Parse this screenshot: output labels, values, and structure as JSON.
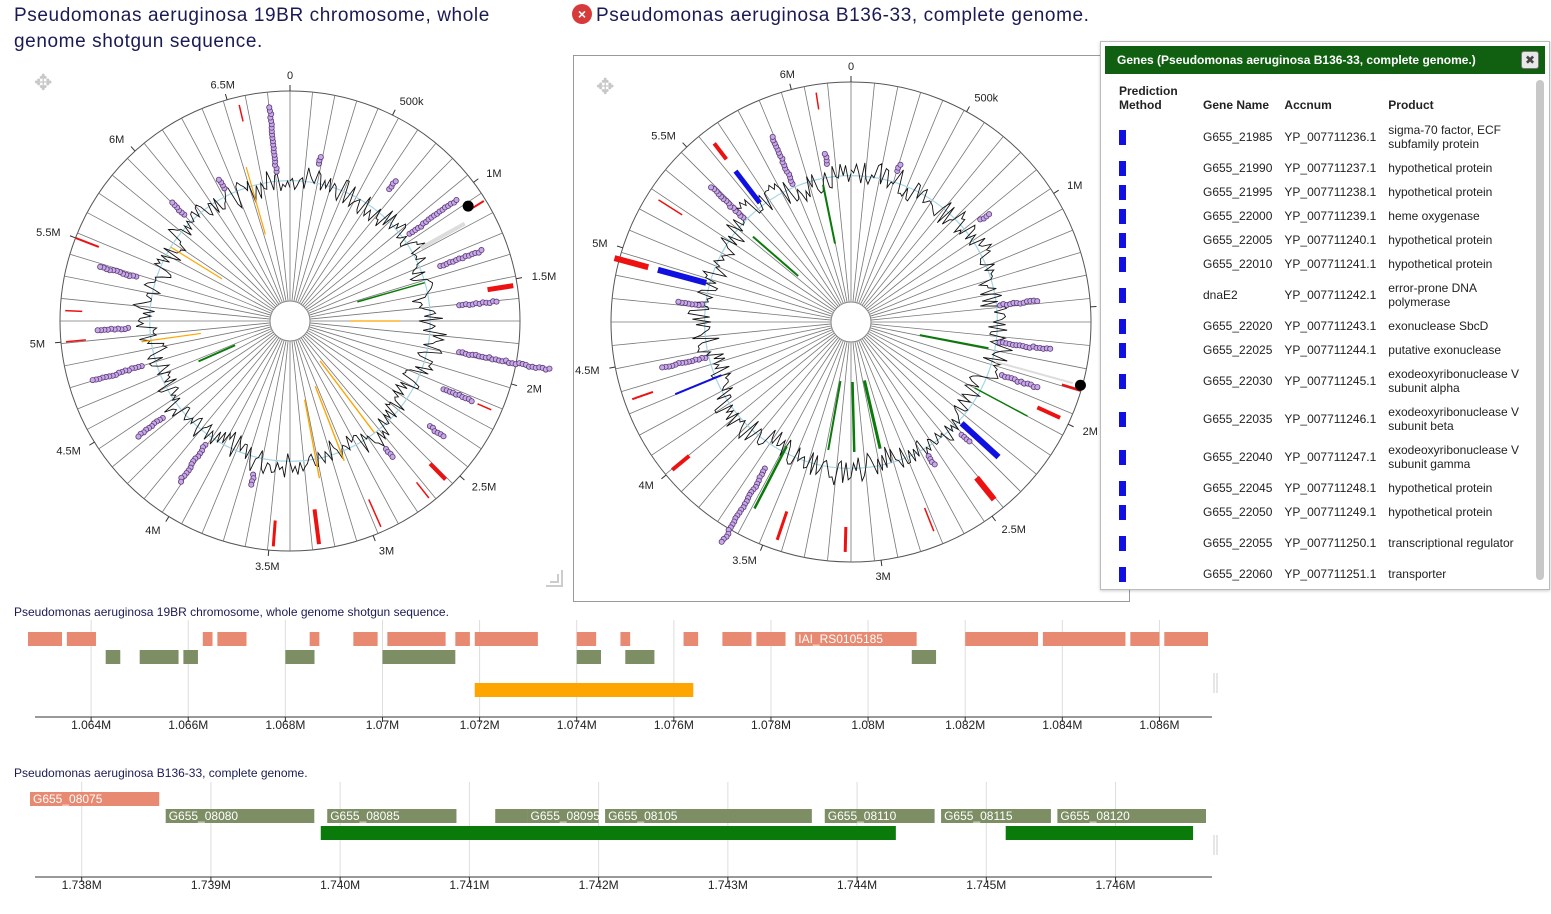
{
  "titles": {
    "left": "Pseudomonas aeruginosa 19BR chromosome, whole genome shotgun sequence.",
    "right": "Pseudomonas aeruginosa B136-33, complete genome."
  },
  "icons": {
    "close": "close-icon",
    "move": "move-icon",
    "resize": "resize-icon"
  },
  "colors": {
    "accent_green": "#116011",
    "feature_salmon": "#e88a72",
    "feature_olive": "#7d8e65",
    "feature_orange": "#ffa500",
    "feature_green": "#0a7a0a",
    "feature_blue": "#1010e0",
    "feature_red": "#ee1111"
  },
  "circle_left": {
    "labels": [
      "0",
      "500k",
      "1M",
      "1.5M",
      "2M",
      "2.5M",
      "3M",
      "3.5M",
      "4M",
      "4.5M",
      "5M",
      "5.5M",
      "6M",
      "6.5M"
    ],
    "label_positions_bp": [
      0,
      500000,
      1000000,
      1500000,
      2000000,
      2500000,
      3000000,
      3500000,
      4000000,
      4500000,
      5000000,
      5500000,
      6000000,
      6500000
    ],
    "genome_length_bp": 6800000
  },
  "circle_right": {
    "labels": [
      "0",
      "500k",
      "1M",
      "1.5M",
      "2M",
      "2.5M",
      "3M",
      "3.5M",
      "4M",
      "4.5M",
      "5M",
      "5.5M",
      "6M"
    ],
    "label_positions_bp": [
      0,
      500000,
      1000000,
      1500000,
      2000000,
      2500000,
      3000000,
      3500000,
      4000000,
      4500000,
      5000000,
      5500000,
      6000000
    ],
    "genome_length_bp": 6250000
  },
  "genes_panel": {
    "title": "Genes (Pseudomonas aeruginosa B136-33, complete genome.)",
    "columns": [
      "Prediction Method",
      "Gene Name",
      "Accnum",
      "Product"
    ],
    "rows": [
      {
        "gene": "G655_21985",
        "acc": "YP_007711236.1",
        "product": "sigma-70 factor, ECF subfamily protein"
      },
      {
        "gene": "G655_21990",
        "acc": "YP_007711237.1",
        "product": "hypothetical protein"
      },
      {
        "gene": "G655_21995",
        "acc": "YP_007711238.1",
        "product": "hypothetical protein"
      },
      {
        "gene": "G655_22000",
        "acc": "YP_007711239.1",
        "product": "heme oxygenase"
      },
      {
        "gene": "G655_22005",
        "acc": "YP_007711240.1",
        "product": "hypothetical protein"
      },
      {
        "gene": "G655_22010",
        "acc": "YP_007711241.1",
        "product": "hypothetical protein"
      },
      {
        "gene": "dnaE2",
        "acc": "YP_007711242.1",
        "product": "error-prone DNA polymerase"
      },
      {
        "gene": "G655_22020",
        "acc": "YP_007711243.1",
        "product": "exonuclease SbcD"
      },
      {
        "gene": "G655_22025",
        "acc": "YP_007711244.1",
        "product": "putative exonuclease"
      },
      {
        "gene": "G655_22030",
        "acc": "YP_007711245.1",
        "product": "exodeoxyribonuclease V subunit alpha"
      },
      {
        "gene": "G655_22035",
        "acc": "YP_007711246.1",
        "product": "exodeoxyribonuclease V subunit beta"
      },
      {
        "gene": "G655_22040",
        "acc": "YP_007711247.1",
        "product": "exodeoxyribonuclease V subunit gamma"
      },
      {
        "gene": "G655_22045",
        "acc": "YP_007711248.1",
        "product": "hypothetical protein"
      },
      {
        "gene": "G655_22050",
        "acc": "YP_007711249.1",
        "product": "hypothetical protein"
      },
      {
        "gene": "G655_22055",
        "acc": "YP_007711250.1",
        "product": "transcriptional regulator"
      },
      {
        "gene": "G655_22060",
        "acc": "YP_007711251.1",
        "product": "transporter"
      }
    ]
  },
  "track1": {
    "label": "Pseudomonas aeruginosa 19BR chromosome, whole genome shotgun sequence.",
    "range_bp": [
      1062700,
      1087000
    ],
    "ticks": [
      "1.064M",
      "1.066M",
      "1.068M",
      "1.07M",
      "1.072M",
      "1.074M",
      "1.076M",
      "1.078M",
      "1.08M",
      "1.082M",
      "1.084M",
      "1.086M"
    ],
    "tick_values": [
      1064000,
      1066000,
      1068000,
      1070000,
      1072000,
      1074000,
      1076000,
      1078000,
      1080000,
      1082000,
      1084000,
      1086000
    ],
    "row1": [
      [
        1062700,
        1063400
      ],
      [
        1063500,
        1064100
      ],
      [
        1066300,
        1066500
      ],
      [
        1066600,
        1067200
      ],
      [
        1068500,
        1068700
      ],
      [
        1069400,
        1069900
      ],
      [
        1070100,
        1071300
      ],
      [
        1071500,
        1071800
      ],
      [
        1071900,
        1073200
      ],
      [
        1074000,
        1074400
      ],
      [
        1074900,
        1075100
      ],
      [
        1076200,
        1076500
      ],
      [
        1077000,
        1077600
      ],
      [
        1077700,
        1078300
      ],
      [
        1078500,
        1081000
      ],
      [
        1082000,
        1083500
      ],
      [
        1083600,
        1085300
      ],
      [
        1085400,
        1086000
      ],
      [
        1086100,
        1087000
      ]
    ],
    "row1_label": {
      "text": "IAI_RS0105185",
      "start": 1078500,
      "end": 1081000
    },
    "row2": [
      [
        1064300,
        1064600
      ],
      [
        1065000,
        1065800
      ],
      [
        1065900,
        1066200
      ],
      [
        1068000,
        1068600
      ],
      [
        1070000,
        1071500
      ],
      [
        1074000,
        1074500
      ],
      [
        1075000,
        1075600
      ],
      [
        1080900,
        1081400
      ]
    ],
    "row3": [
      [
        1071900,
        1076400
      ]
    ]
  },
  "track2": {
    "label": "Pseudomonas aeruginosa B136-33, complete genome.",
    "range_bp": [
      1737600,
      1746700
    ],
    "ticks": [
      "1.738M",
      "1.739M",
      "1.740M",
      "1.741M",
      "1.742M",
      "1.743M",
      "1.744M",
      "1.745M",
      "1.746M"
    ],
    "tick_values": [
      1738000,
      1739000,
      1740000,
      1741000,
      1742000,
      1743000,
      1744000,
      1745000,
      1746000
    ],
    "row1": [
      {
        "start": 1737600,
        "end": 1738600,
        "text": "G655_08075"
      }
    ],
    "row2": [
      {
        "start": 1738650,
        "end": 1739800,
        "text": "G655_08080"
      },
      {
        "start": 1739900,
        "end": 1740900,
        "text": "G655_08085"
      },
      {
        "start": 1741200,
        "end": 1741450,
        "text": ""
      },
      {
        "start": 1741450,
        "end": 1742000,
        "text": "G655_08095"
      },
      {
        "start": 1742050,
        "end": 1743650,
        "text": "G655_08105"
      },
      {
        "start": 1743750,
        "end": 1744600,
        "text": "G655_08110"
      },
      {
        "start": 1744650,
        "end": 1745500,
        "text": "G655_08115"
      },
      {
        "start": 1745550,
        "end": 1746700,
        "text": "G655_08120"
      }
    ],
    "row3": [
      [
        1739850,
        1744300
      ],
      [
        1745150,
        1746600
      ]
    ]
  }
}
